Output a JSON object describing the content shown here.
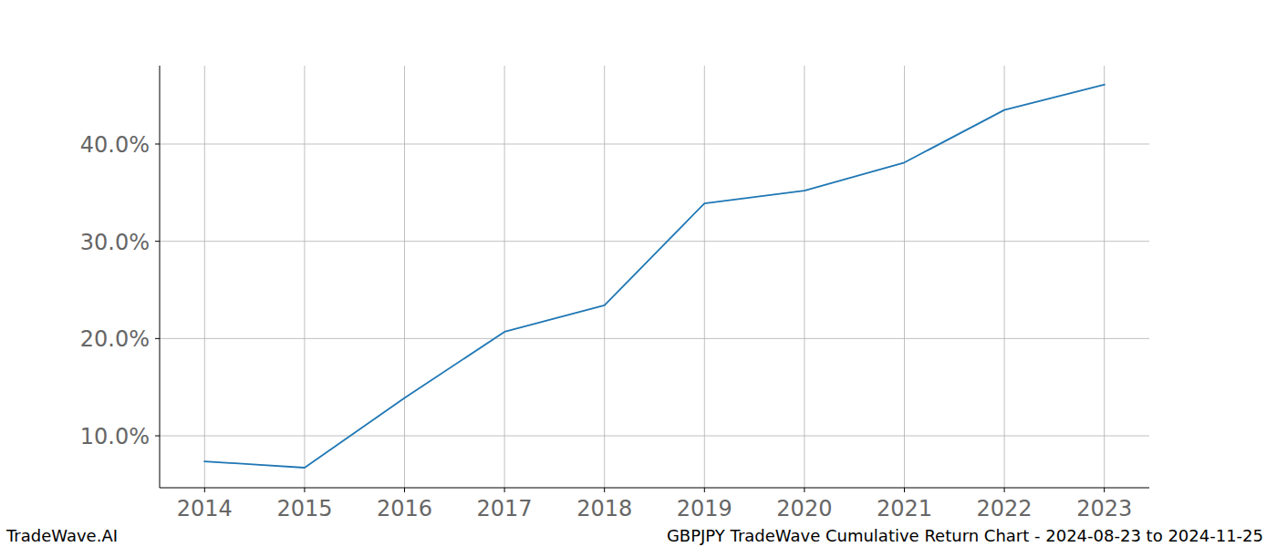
{
  "chart_data": {
    "type": "line",
    "title": "GBPJPY TradeWave Cumulative Return Chart - 2024-08-23 to 2024-11-25",
    "source": "TradeWave.AI",
    "x": [
      2014,
      2015,
      2016,
      2017,
      2018,
      2019,
      2020,
      2021,
      2022,
      2023
    ],
    "series": [
      {
        "name": "GBPJPY",
        "color": "#1f77b4",
        "values": [
          7.37,
          6.72,
          13.9,
          20.69,
          23.41,
          33.9,
          35.2,
          38.1,
          43.5,
          46.1
        ]
      }
    ],
    "xlim": [
      2013.55,
      2023.45
    ],
    "xticks": [
      2014,
      2015,
      2016,
      2017,
      2018,
      2019,
      2020,
      2021,
      2022,
      2023
    ],
    "ylim": [
      4.66,
      48.06
    ],
    "yticks": [
      {
        "value": 10,
        "label": "10.0%"
      },
      {
        "value": 20,
        "label": "20.0%"
      },
      {
        "value": 30,
        "label": "30.0%"
      },
      {
        "value": 40,
        "label": "40.0%"
      }
    ],
    "grid": true
  }
}
